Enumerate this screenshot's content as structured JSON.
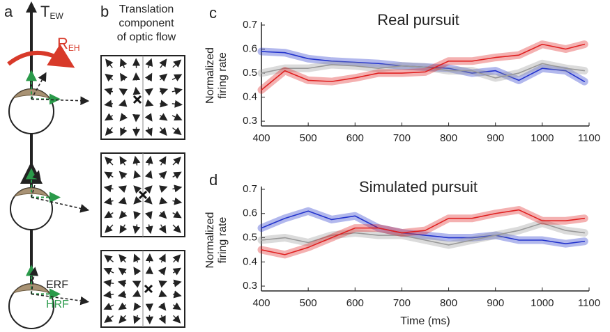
{
  "diagram": {
    "panel_a": "a",
    "panel_b": "b",
    "t": "T",
    "t_sub": "EW",
    "r": "R",
    "r_sub": "EH",
    "erf": "ERF",
    "hrf": "HRF",
    "flow_title": [
      "Translation",
      "component",
      "of optic flow"
    ]
  },
  "chart_data": [
    {
      "type": "line",
      "panel": "c",
      "title": "Real pursuit",
      "ylabel": [
        "Normalized",
        "firing rate"
      ],
      "x": [
        400,
        450,
        500,
        550,
        600,
        650,
        700,
        750,
        800,
        850,
        900,
        950,
        1000,
        1050,
        1090
      ],
      "series": [
        {
          "color": "#2233cc",
          "values": [
            0.59,
            0.585,
            0.56,
            0.55,
            0.545,
            0.54,
            0.53,
            0.525,
            0.52,
            0.5,
            0.51,
            0.47,
            0.52,
            0.51,
            0.465
          ]
        },
        {
          "color": "#999999",
          "values": [
            0.5,
            0.52,
            0.52,
            0.535,
            0.53,
            0.52,
            0.53,
            0.525,
            0.51,
            0.51,
            0.48,
            0.5,
            0.54,
            0.52,
            0.51
          ]
        },
        {
          "color": "#e02020",
          "values": [
            0.43,
            0.51,
            0.47,
            0.465,
            0.48,
            0.5,
            0.5,
            0.505,
            0.55,
            0.55,
            0.565,
            0.575,
            0.62,
            0.6,
            0.62
          ]
        }
      ],
      "xlim": [
        400,
        1100
      ],
      "xticks": [
        400,
        500,
        600,
        700,
        800,
        900,
        1000,
        1100
      ],
      "ylim": [
        0.28,
        0.7
      ],
      "yticks": [
        0.3,
        0.4,
        0.5,
        0.6,
        0.7
      ]
    },
    {
      "type": "line",
      "panel": "d",
      "title": "Simulated pursuit",
      "ylabel": [
        "Normalized",
        "firing rate"
      ],
      "xlabel": "Time (ms)",
      "x": [
        400,
        450,
        500,
        550,
        600,
        650,
        700,
        750,
        800,
        850,
        900,
        950,
        1000,
        1050,
        1090
      ],
      "series": [
        {
          "color": "#2233cc",
          "values": [
            0.54,
            0.58,
            0.61,
            0.575,
            0.59,
            0.54,
            0.52,
            0.51,
            0.5,
            0.5,
            0.51,
            0.49,
            0.49,
            0.475,
            0.485
          ]
        },
        {
          "color": "#999999",
          "values": [
            0.49,
            0.5,
            0.48,
            0.51,
            0.52,
            0.51,
            0.51,
            0.49,
            0.47,
            0.49,
            0.51,
            0.53,
            0.56,
            0.53,
            0.52
          ]
        },
        {
          "color": "#e02020",
          "values": [
            0.45,
            0.43,
            0.46,
            0.5,
            0.54,
            0.54,
            0.52,
            0.53,
            0.58,
            0.58,
            0.6,
            0.615,
            0.57,
            0.57,
            0.58
          ]
        }
      ],
      "xlim": [
        400,
        1100
      ],
      "xticks": [
        400,
        500,
        600,
        700,
        800,
        900,
        1000,
        1100
      ],
      "ylim": [
        0.28,
        0.7
      ],
      "yticks": [
        0.3,
        0.4,
        0.5,
        0.6,
        0.7
      ]
    }
  ]
}
